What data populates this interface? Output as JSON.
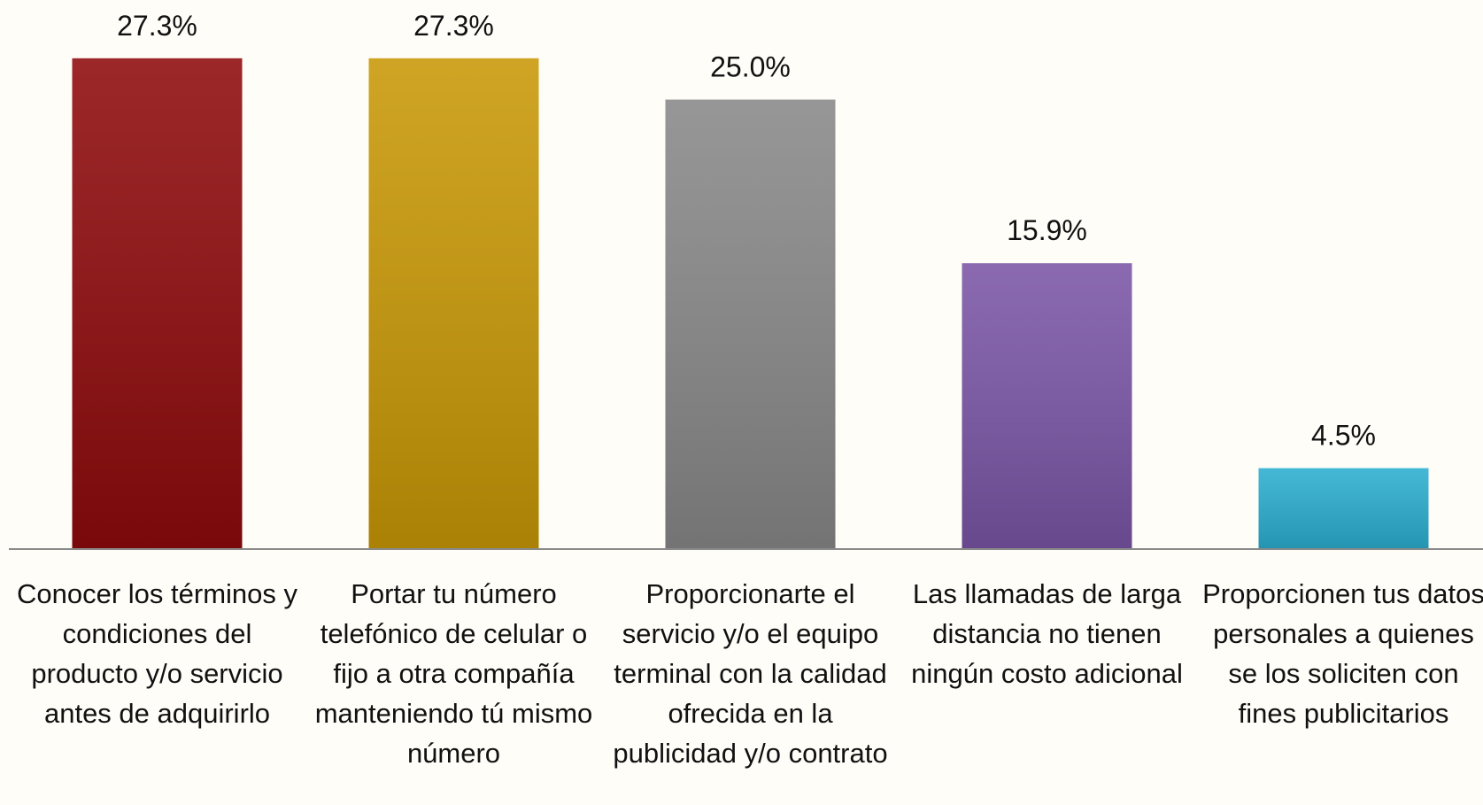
{
  "chart_data": {
    "type": "bar",
    "categories": [
      "Conocer los términos y condiciones del producto y/o servicio antes de adquirirlo",
      "Portar tu número telefónico de celular o fijo a otra compañía manteniendo tú mismo número",
      "Proporcionarte el servicio y/o el equipo terminal con la calidad ofrecida en la publicidad y/o contrato",
      "Las llamadas de larga distancia no tienen ningún costo adicional",
      "Proporcionen tus datos personales a quienes se los soliciten con fines publicitarios"
    ],
    "values": [
      27.3,
      27.3,
      25.0,
      15.9,
      4.5
    ],
    "value_labels": [
      "27.3%",
      "27.3%",
      "25.0%",
      "15.9%",
      "4.5%"
    ],
    "colors": [
      "#8e0a0c",
      "#c99806",
      "#888888",
      "#7a55a6",
      "#2aaed0"
    ],
    "ylim": [
      0,
      30
    ]
  }
}
